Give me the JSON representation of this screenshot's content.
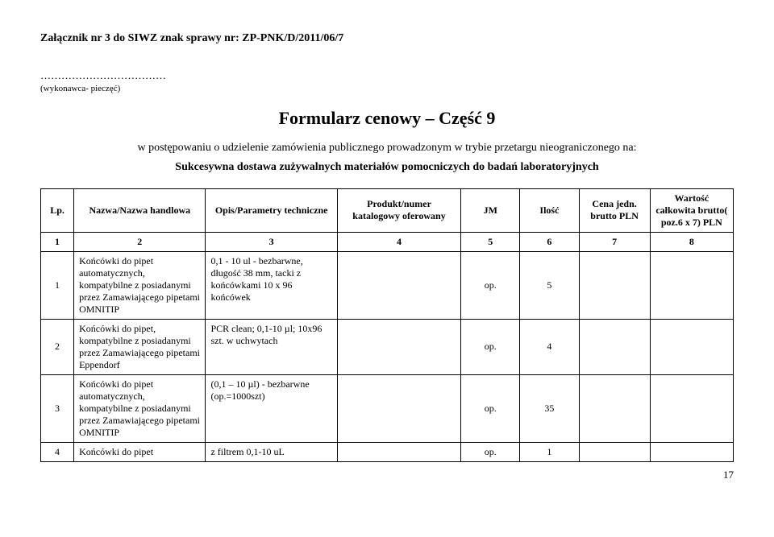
{
  "header": "Załącznik nr 3 do SIWZ   znak sprawy nr: ZP-PNK/D/2011/06/7",
  "dots": "………………………………",
  "sub": "(wykonawca- pieczęć)",
  "title": "Formularz cenowy – Część 9",
  "intro1": "w postępowaniu o udzielenie zamówienia publicznego prowadzonym w trybie przetargu nieograniczonego na:",
  "intro2": "Sukcesywna dostawa zużywalnych materiałów pomocniczych do badań laboratoryjnych",
  "thead": {
    "lp": "Lp.",
    "name": "Nazwa/Nazwa handlowa",
    "opis": "Opis/Parametry techniczne",
    "prod": "Produkt/numer katalogowy oferowany",
    "jm": "JM",
    "ilosc": "Ilość",
    "cena": "Cena jedn. brutto PLN",
    "wart": "Wartość całkowita brutto( poz.6 x 7) PLN"
  },
  "numrow": {
    "c1": "1",
    "c2": "2",
    "c3": "3",
    "c4": "4",
    "c5": "5",
    "c6": "6",
    "c7": "7",
    "c8": "8"
  },
  "rows": [
    {
      "lp": "1",
      "name": "Końcówki do pipet automatycznych, kompatybilne z posiadanymi przez Zamawiającego pipetami OMNITIP",
      "opis": "0,1 - 10 ul - bezbarwne, długość 38 mm, tacki z końcówkami 10 x 96 końcówek",
      "prod": "",
      "jm": "op.",
      "ilosc": "5",
      "cena": "",
      "wart": ""
    },
    {
      "lp": "2",
      "name": "Końcówki do pipet, kompatybilne z posiadanymi przez Zamawiającego pipetami Eppendorf",
      "opis": "PCR clean; 0,1-10 µl; 10x96 szt. w uchwytach",
      "prod": "",
      "jm": "op.",
      "ilosc": "4",
      "cena": "",
      "wart": ""
    },
    {
      "lp": "3",
      "name": "Końcówki do pipet automatycznych, kompatybilne z posiadanymi przez Zamawiającego pipetami OMNITIP",
      "opis": "(0,1 – 10 µl) - bezbarwne (op.=1000szt)",
      "prod": "",
      "jm": "op.",
      "ilosc": "35",
      "cena": "",
      "wart": ""
    },
    {
      "lp": "4",
      "name": "Końcówki do pipet",
      "opis": "z filtrem 0,1-10 uL",
      "prod": "",
      "jm": "op.",
      "ilosc": "1",
      "cena": "",
      "wart": ""
    }
  ],
  "pagenum": "17"
}
